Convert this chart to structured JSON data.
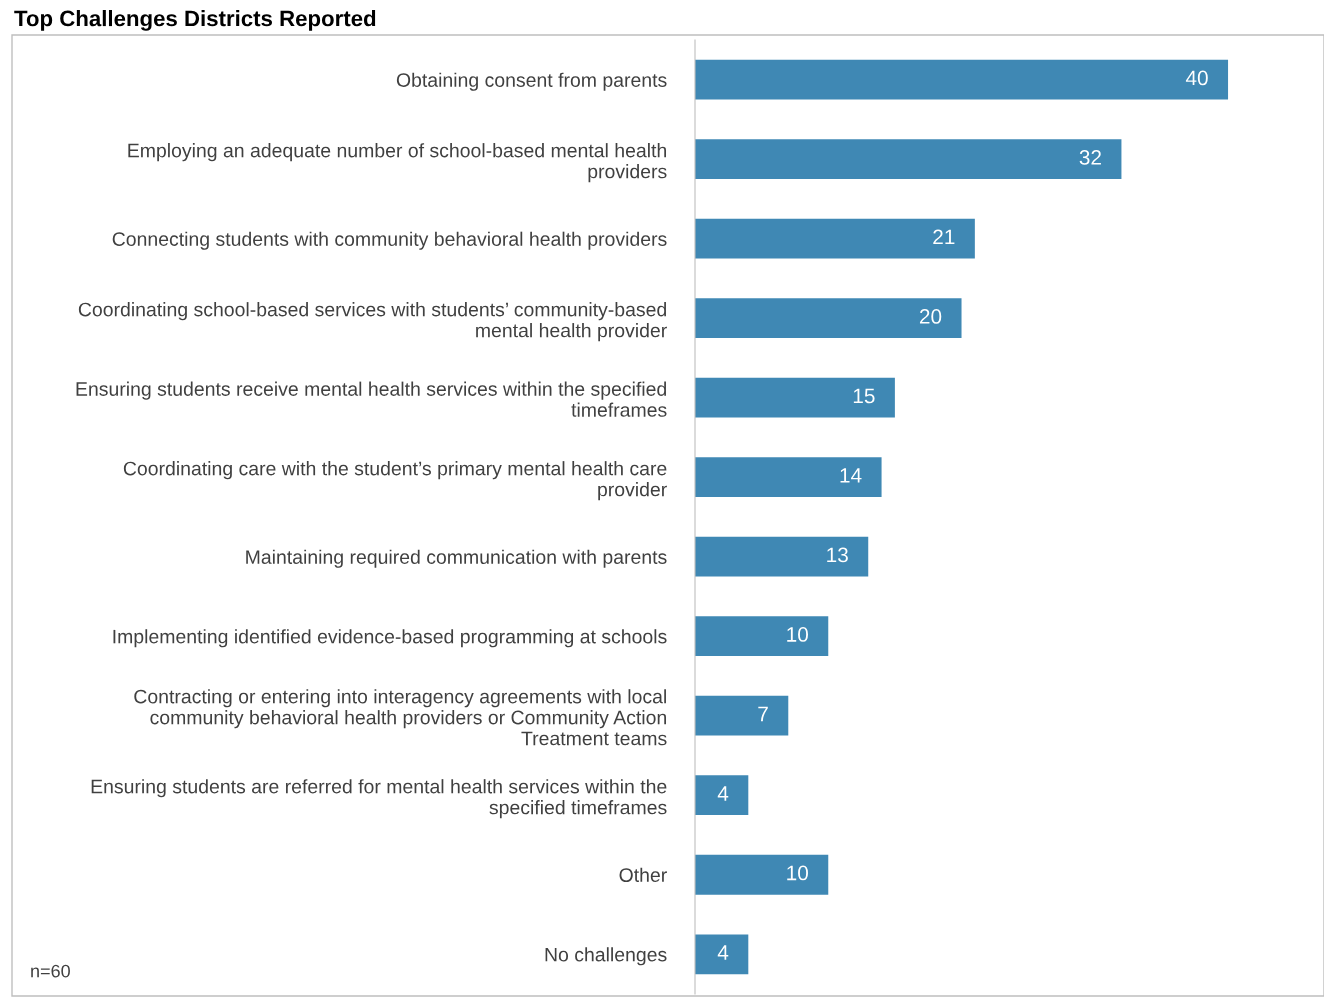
{
  "chart_data": {
    "type": "bar",
    "orientation": "horizontal",
    "title": "Top Challenges Districts Reported",
    "categories": [
      "Obtaining consent from parents",
      "Employing an adequate number of school-based mental health\nproviders",
      "Connecting students with community behavioral health providers",
      "Coordinating school-based services with students’ community-based\nmental health provider",
      "Ensuring students receive mental health services within the specified\ntimeframes",
      "Coordinating care with the student’s primary mental health care\nprovider",
      "Maintaining required communication with parents",
      "Implementing identified evidence-based programming at schools",
      "Contracting or entering into interagency agreements with local\ncommunity behavioral health providers or Community Action\nTreatment teams",
      "Ensuring students are referred for mental health services within the\nspecified timeframes",
      "Other",
      "No challenges"
    ],
    "values": [
      40,
      32,
      21,
      20,
      15,
      14,
      13,
      10,
      7,
      4,
      10,
      4
    ],
    "color": "#3f88b4",
    "data_labels": true,
    "annotations": [
      "n=60"
    ]
  }
}
